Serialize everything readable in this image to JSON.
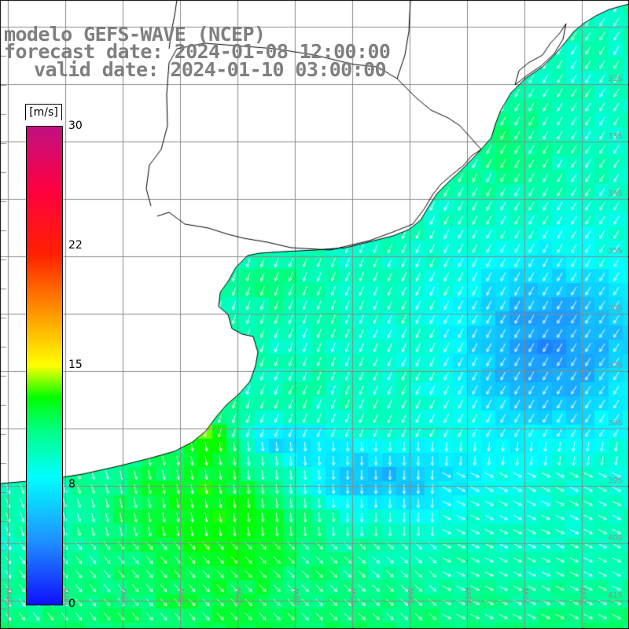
{
  "title": {
    "line1": "modelo GEFS-WAVE (NCEP)",
    "line2": "forecast date: 2024-01-08 12:00:00",
    "line3": "valid date: 2024-01-10 03:00:00"
  },
  "colorbar": {
    "unit": "[m/s]",
    "labels": [
      "30",
      "22",
      "15",
      "8",
      "0"
    ],
    "stops": [
      {
        "value": 0,
        "color": "#1010ff"
      },
      {
        "value": 4,
        "color": "#1e90ff"
      },
      {
        "value": 8,
        "color": "#00ffff"
      },
      {
        "value": 11,
        "color": "#00ff80"
      },
      {
        "value": 13,
        "color": "#00ff00"
      },
      {
        "value": 15,
        "color": "#ffff00"
      },
      {
        "value": 19,
        "color": "#ff8000"
      },
      {
        "value": 22,
        "color": "#ff2000"
      },
      {
        "value": 26,
        "color": "#ff0040"
      },
      {
        "value": 30,
        "color": "#c01080"
      }
    ]
  },
  "map": {
    "lat_labels": [
      "32S",
      "33S",
      "34S",
      "35S",
      "36S",
      "37S",
      "38S",
      "39S",
      "40S",
      "41S"
    ],
    "lon_labels": [
      "61W",
      "60W",
      "59W",
      "58W",
      "57W",
      "56W",
      "55W",
      "54W",
      "53W",
      "52W",
      "51W"
    ],
    "colors": {
      "land": "#ffffff",
      "coast": "#000000",
      "grid": "#8a8a8a",
      "arrows": "#ffffff"
    }
  }
}
